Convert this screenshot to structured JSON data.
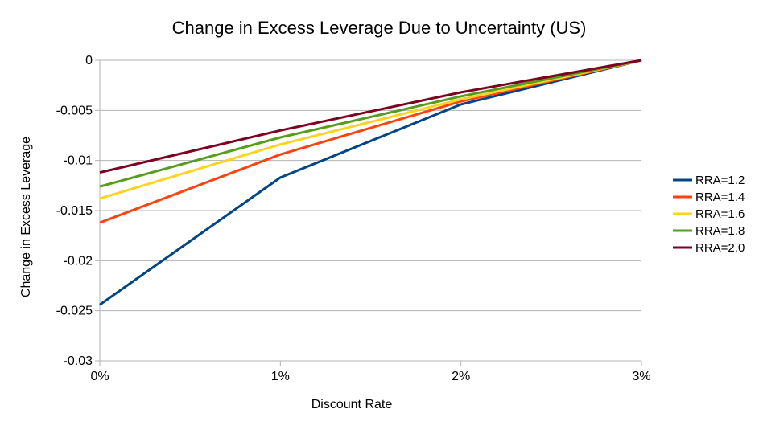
{
  "chart_data": {
    "type": "line",
    "title": "Change in Excess Leverage Due to Uncertainty (US)",
    "xlabel": "Discount Rate",
    "ylabel": "Change in Excess Leverage",
    "categories": [
      "0%",
      "1%",
      "2%",
      "3%"
    ],
    "y_ticks": [
      "0",
      "-0.005",
      "-0.01",
      "-0.015",
      "-0.02",
      "-0.025",
      "-0.03"
    ],
    "ylim": [
      -0.03,
      0
    ],
    "grid": true,
    "legend_position": "right",
    "series": [
      {
        "name": "RRA=1.2",
        "color": "#004586",
        "values": [
          -0.0244,
          -0.0117,
          -0.0044,
          0
        ]
      },
      {
        "name": "RRA=1.4",
        "color": "#ff420e",
        "values": [
          -0.0162,
          -0.0094,
          -0.0041,
          0
        ]
      },
      {
        "name": "RRA=1.6",
        "color": "#ffd320",
        "values": [
          -0.0138,
          -0.0084,
          -0.0039,
          0
        ]
      },
      {
        "name": "RRA=1.8",
        "color": "#579d1c",
        "values": [
          -0.0126,
          -0.0077,
          -0.0036,
          0
        ]
      },
      {
        "name": "RRA=2.0",
        "color": "#7e0021",
        "values": [
          -0.0112,
          -0.007,
          -0.0032,
          0
        ]
      }
    ]
  }
}
